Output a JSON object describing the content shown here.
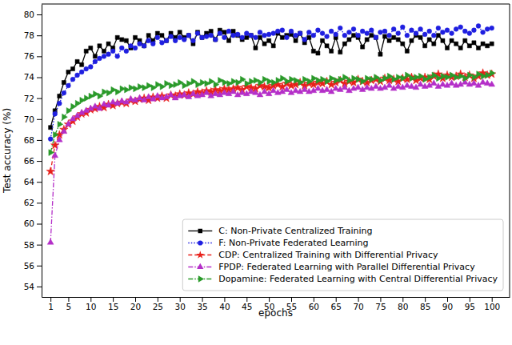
{
  "chart_data": {
    "type": "line",
    "x_label": "epochs",
    "y_label": "Test accuracy (%)",
    "xlim": [
      -1,
      104
    ],
    "ylim": [
      53,
      81
    ],
    "xticks": [
      1,
      5,
      10,
      15,
      20,
      25,
      30,
      35,
      40,
      45,
      50,
      55,
      60,
      65,
      70,
      75,
      80,
      85,
      90,
      95,
      100
    ],
    "yticks": [
      54,
      56,
      58,
      60,
      62,
      64,
      66,
      68,
      70,
      72,
      74,
      76,
      78,
      80
    ],
    "grid": false,
    "legend": "lower right",
    "x": [
      1,
      2,
      3,
      4,
      5,
      6,
      7,
      8,
      9,
      10,
      11,
      12,
      13,
      14,
      15,
      16,
      17,
      18,
      19,
      20,
      21,
      22,
      23,
      24,
      25,
      26,
      27,
      28,
      29,
      30,
      31,
      32,
      33,
      34,
      35,
      36,
      37,
      38,
      39,
      40,
      41,
      42,
      43,
      44,
      45,
      46,
      47,
      48,
      49,
      50,
      51,
      52,
      53,
      54,
      55,
      56,
      57,
      58,
      59,
      60,
      61,
      62,
      63,
      64,
      65,
      66,
      67,
      68,
      69,
      70,
      71,
      72,
      73,
      74,
      75,
      76,
      77,
      78,
      79,
      80,
      81,
      82,
      83,
      84,
      85,
      86,
      87,
      88,
      89,
      90,
      91,
      92,
      93,
      94,
      95,
      96,
      97,
      98,
      99,
      100
    ],
    "series": [
      {
        "name": "C: Non-Private Centralized Training",
        "color": "#000000",
        "marker": "square",
        "line_style": "solid",
        "values": [
          69.2,
          70.8,
          72.2,
          73.5,
          74.5,
          74.8,
          75.5,
          75.2,
          76.5,
          76.8,
          76.0,
          77.0,
          76.5,
          77.2,
          76.8,
          77.8,
          77.6,
          77.5,
          76.8,
          77.8,
          77.5,
          77.0,
          78.0,
          77.5,
          78.2,
          78.0,
          77.5,
          78.2,
          77.8,
          78.3,
          77.8,
          78.0,
          77.2,
          78.3,
          77.8,
          78.2,
          78.4,
          77.6,
          78.5,
          78.3,
          77.5,
          78.4,
          78.0,
          77.6,
          77.8,
          78.0,
          76.8,
          77.8,
          77.2,
          77.5,
          77.0,
          78.2,
          77.8,
          78.0,
          78.1,
          77.5,
          78.2,
          77.3,
          77.8,
          76.5,
          76.3,
          77.5,
          77.0,
          76.5,
          77.8,
          76.4,
          77.2,
          77.6,
          78.0,
          77.8,
          76.9,
          77.6,
          78.0,
          77.8,
          76.2,
          77.9,
          77.5,
          77.8,
          77.6,
          77.2,
          76.5,
          77.5,
          78.0,
          77.8,
          77.0,
          77.6,
          77.2,
          78.0,
          77.5,
          76.8,
          77.5,
          77.2,
          76.8,
          77.5,
          77.0,
          77.3,
          76.8,
          77.2,
          77.0,
          77.2
        ]
      },
      {
        "name": "F: Non-Private Federated Learning",
        "color": "#1f1fe0",
        "marker": "circle",
        "line_style": "dotted",
        "values": [
          68.1,
          70.5,
          71.5,
          72.5,
          73.2,
          73.8,
          74.2,
          74.5,
          74.8,
          75.0,
          75.5,
          75.8,
          76.0,
          76.2,
          76.5,
          76.0,
          76.8,
          76.5,
          77.0,
          76.8,
          77.2,
          77.0,
          77.5,
          77.2,
          77.8,
          77.3,
          77.5,
          77.9,
          77.5,
          77.8,
          77.6,
          78.0,
          77.5,
          78.2,
          77.8,
          77.9,
          78.0,
          77.6,
          78.2,
          77.8,
          78.4,
          78.0,
          78.1,
          77.8,
          78.2,
          78.0,
          77.8,
          78.3,
          78.0,
          78.1,
          78.2,
          78.4,
          78.5,
          77.8,
          78.4,
          78.0,
          78.2,
          77.6,
          78.3,
          78.0,
          78.5,
          78.2,
          77.9,
          78.4,
          78.1,
          78.7,
          78.0,
          78.3,
          78.6,
          78.0,
          78.4,
          78.2,
          78.5,
          77.8,
          78.3,
          78.4,
          78.0,
          78.6,
          78.2,
          78.8,
          78.0,
          78.5,
          78.2,
          78.6,
          78.1,
          78.4,
          78.0,
          78.7,
          78.3,
          78.5,
          78.2,
          78.6,
          78.8,
          78.4,
          78.2,
          78.5,
          78.9,
          78.3,
          78.6,
          78.7
        ]
      },
      {
        "name": "CDP: Centralized Training with Differential Privacy",
        "color": "#e8201a",
        "marker": "star",
        "line_style": "dashed",
        "values": [
          65.0,
          67.5,
          68.5,
          69.0,
          69.5,
          69.8,
          70.2,
          70.5,
          70.6,
          70.9,
          71.0,
          71.2,
          71.1,
          71.4,
          71.3,
          71.5,
          71.6,
          71.5,
          71.8,
          71.7,
          71.9,
          72.0,
          71.8,
          72.1,
          72.0,
          72.2,
          72.0,
          72.3,
          72.2,
          72.4,
          72.3,
          72.5,
          72.4,
          72.6,
          72.5,
          72.7,
          72.6,
          72.8,
          72.7,
          72.9,
          72.8,
          72.9,
          73.0,
          72.8,
          73.1,
          73.0,
          72.9,
          73.2,
          73.1,
          73.0,
          73.2,
          73.3,
          73.1,
          73.4,
          73.2,
          73.3,
          73.5,
          73.2,
          73.4,
          73.3,
          73.5,
          73.4,
          73.6,
          73.3,
          73.5,
          73.7,
          73.4,
          73.6,
          73.5,
          73.8,
          73.6,
          73.5,
          73.7,
          73.8,
          73.6,
          73.9,
          73.7,
          73.8,
          73.6,
          73.9,
          73.8,
          74.0,
          73.7,
          73.9,
          74.0,
          73.8,
          74.1,
          74.3,
          73.9,
          74.2,
          74.0,
          74.1,
          74.3,
          74.0,
          74.2,
          73.9,
          74.1,
          74.4,
          74.2,
          74.3
        ]
      },
      {
        "name": "FPDP: Federated Learning with Parallel Differential Privacy",
        "color": "#b42fc8",
        "marker": "triangle",
        "line_style": "dashdot",
        "values": [
          58.2,
          66.5,
          68.0,
          68.8,
          69.5,
          70.0,
          70.3,
          70.6,
          70.8,
          71.0,
          71.2,
          71.0,
          71.4,
          71.3,
          71.6,
          71.5,
          71.7,
          71.6,
          71.9,
          71.8,
          72.0,
          71.8,
          72.1,
          71.9,
          72.2,
          72.0,
          72.1,
          72.3,
          72.0,
          72.2,
          72.3,
          72.1,
          72.4,
          72.2,
          72.3,
          72.5,
          72.2,
          72.4,
          72.3,
          72.5,
          72.4,
          72.6,
          72.3,
          72.5,
          72.4,
          72.6,
          72.5,
          72.3,
          72.6,
          72.4,
          72.7,
          72.5,
          72.6,
          72.8,
          72.5,
          72.7,
          72.6,
          72.8,
          72.6,
          72.7,
          72.9,
          72.7,
          72.8,
          72.6,
          72.9,
          72.8,
          73.0,
          72.7,
          72.9,
          73.0,
          72.8,
          73.0,
          72.9,
          73.1,
          72.9,
          73.0,
          73.2,
          72.9,
          73.1,
          73.0,
          73.2,
          73.1,
          73.0,
          73.3,
          73.1,
          73.2,
          73.4,
          73.1,
          73.3,
          73.2,
          73.4,
          73.2,
          73.3,
          73.5,
          73.3,
          73.4,
          73.2,
          73.5,
          73.4,
          73.3
        ]
      },
      {
        "name": "Dopamine: Federated Learning with Central Differential Privacy",
        "color": "#2a9a2a",
        "marker": "triangle-right",
        "line_style": "dashdot",
        "values": [
          66.8,
          68.5,
          69.5,
          70.2,
          70.8,
          71.2,
          71.5,
          71.8,
          72.0,
          72.2,
          72.4,
          72.2,
          72.6,
          72.5,
          72.8,
          72.6,
          72.9,
          72.8,
          73.0,
          72.9,
          73.1,
          73.0,
          73.2,
          73.0,
          73.3,
          73.1,
          73.4,
          73.2,
          73.3,
          73.5,
          73.2,
          73.4,
          73.6,
          73.3,
          73.5,
          73.4,
          73.6,
          73.3,
          73.7,
          73.5,
          73.4,
          73.6,
          73.5,
          73.8,
          73.4,
          73.6,
          73.7,
          73.5,
          73.8,
          73.6,
          73.5,
          73.7,
          73.9,
          73.6,
          73.8,
          73.7,
          73.5,
          73.8,
          73.6,
          73.9,
          73.7,
          73.8,
          73.6,
          73.9,
          73.7,
          73.8,
          74.0,
          73.7,
          73.9,
          73.8,
          73.6,
          73.9,
          73.8,
          74.0,
          73.7,
          73.9,
          74.1,
          73.8,
          74.0,
          73.9,
          74.2,
          73.9,
          74.0,
          74.1,
          73.8,
          74.0,
          74.2,
          73.9,
          74.1,
          74.0,
          74.2,
          74.0,
          74.1,
          73.9,
          74.2,
          74.0,
          74.3,
          74.1,
          74.2,
          74.4
        ]
      }
    ]
  }
}
